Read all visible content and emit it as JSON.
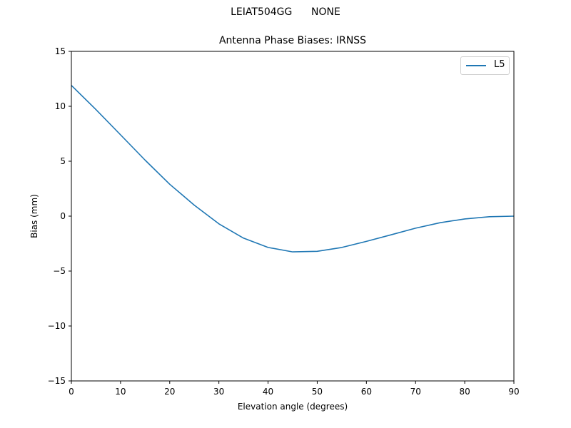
{
  "figure": {
    "suptitle": "LEIAT504GG      NONE",
    "title": "Antenna Phase Biases: IRNSS",
    "xlabel": "Elevation angle (degrees)",
    "ylabel": "Bias (mm)",
    "legend": [
      {
        "label": "L5",
        "color": "#1f77b4"
      }
    ]
  },
  "chart_data": {
    "type": "line",
    "title": "Antenna Phase Biases: IRNSS",
    "suptitle": "LEIAT504GG      NONE",
    "xlabel": "Elevation angle (degrees)",
    "ylabel": "Bias (mm)",
    "xlim": [
      0,
      90
    ],
    "ylim": [
      -15,
      15
    ],
    "xticks": [
      0,
      10,
      20,
      30,
      40,
      50,
      60,
      70,
      80,
      90
    ],
    "yticks": [
      -15,
      -10,
      -5,
      0,
      5,
      10,
      15
    ],
    "grid": false,
    "legend_position": "upper right",
    "x": [
      0,
      5,
      10,
      15,
      20,
      25,
      30,
      35,
      40,
      45,
      50,
      55,
      60,
      65,
      70,
      75,
      80,
      85,
      90
    ],
    "series": [
      {
        "name": "L5",
        "color": "#1f77b4",
        "values": [
          11.9,
          9.7,
          7.4,
          5.1,
          2.9,
          1.0,
          -0.7,
          -2.0,
          -2.85,
          -3.25,
          -3.2,
          -2.85,
          -2.3,
          -1.7,
          -1.1,
          -0.6,
          -0.25,
          -0.05,
          0.0
        ]
      }
    ]
  }
}
